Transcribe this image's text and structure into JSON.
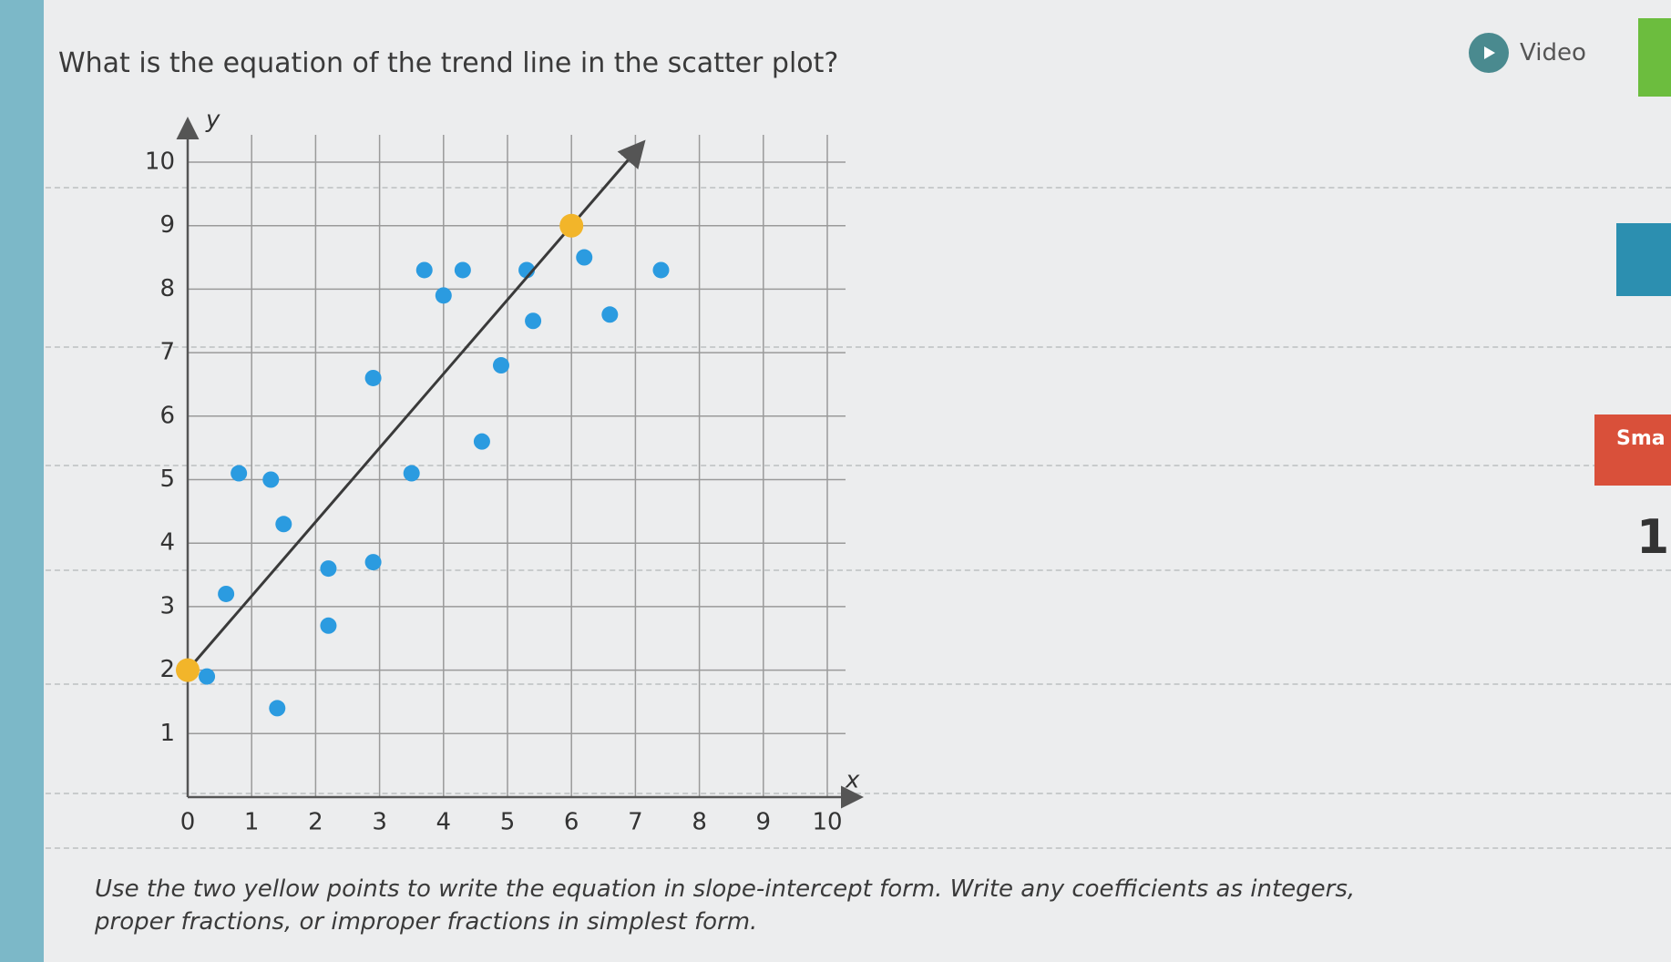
{
  "question": "What is the equation of the trend line in the scatter plot?",
  "video_button": "Video",
  "instruction": "Use the two yellow points to write the equation in slope-intercept form. Write any coefficients as integers, proper fractions, or improper fractions in simplest form.",
  "sidebar": {
    "score_label": "Sma",
    "score_value": "1"
  },
  "chart_data": {
    "type": "scatter",
    "x_label": "x",
    "y_label": "y",
    "xlim": [
      0,
      10
    ],
    "ylim": [
      0,
      10
    ],
    "xticks": [
      0,
      1,
      2,
      3,
      4,
      5,
      6,
      7,
      8,
      9,
      10
    ],
    "yticks": [
      1,
      2,
      3,
      4,
      5,
      6,
      7,
      8,
      9,
      10
    ],
    "grid": true,
    "series": [
      {
        "color": "#2b9be0",
        "x": [
          0.3,
          1.4,
          0.6,
          2.2,
          2.2,
          2.9,
          1.5,
          0.8,
          1.3,
          3.5,
          4.6,
          2.9,
          4.9,
          5.4,
          6.6,
          4.0,
          3.7,
          4.3,
          5.3,
          6.2,
          7.4
        ],
        "values": [
          1.9,
          1.4,
          3.2,
          3.6,
          2.7,
          3.7,
          4.3,
          5.1,
          5.0,
          5.1,
          5.6,
          6.6,
          6.8,
          7.5,
          7.6,
          7.9,
          8.3,
          8.3,
          8.3,
          8.5,
          8.3
        ]
      },
      {
        "color": "#f2b52a",
        "trend_line": true,
        "line_color": "#3a3a3a",
        "x": [
          0,
          6
        ],
        "values": [
          2,
          9
        ]
      }
    ]
  }
}
